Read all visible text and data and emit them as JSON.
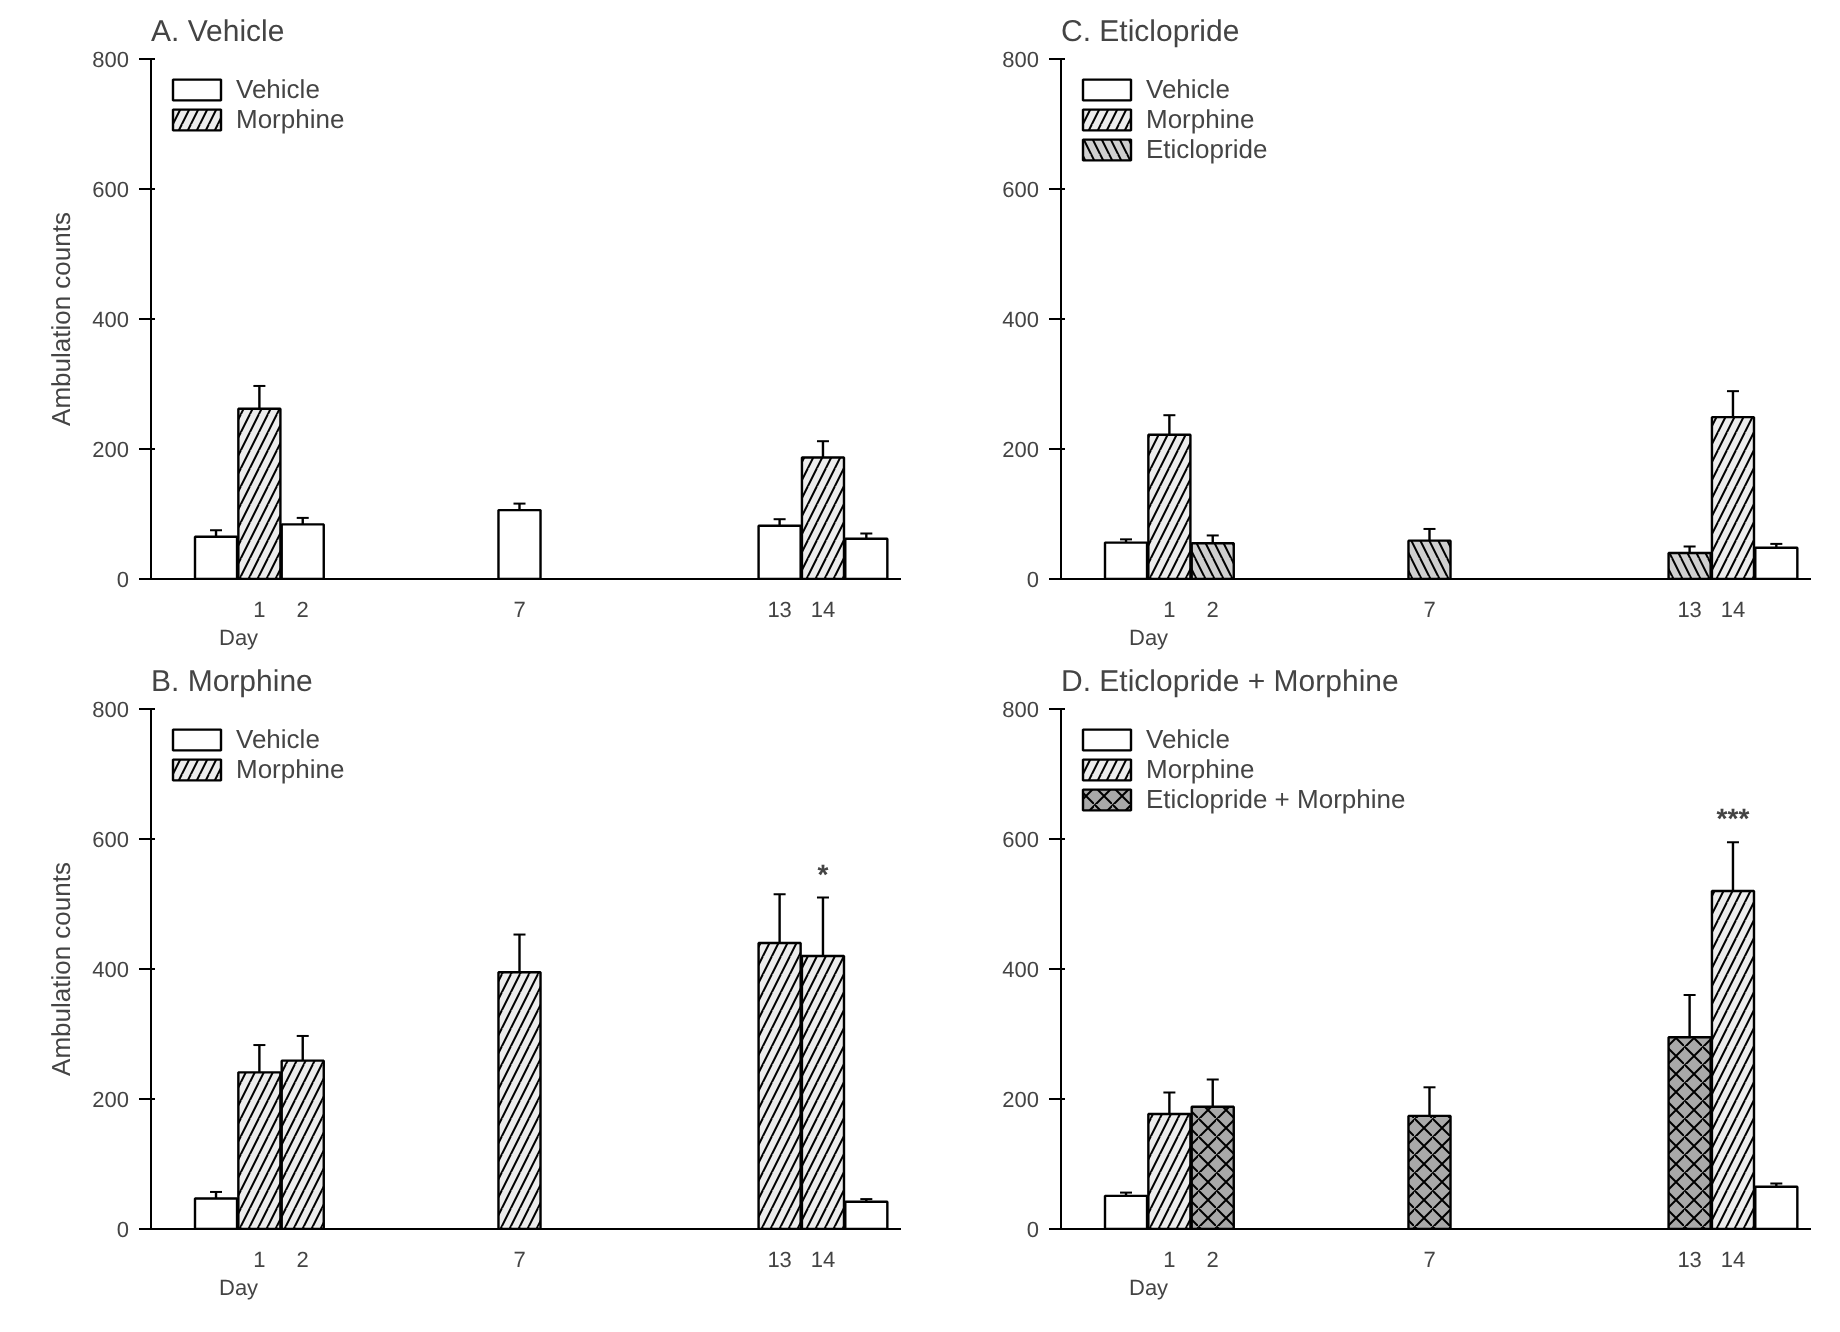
{
  "chart_data": [
    {
      "type": "bar",
      "title": "A. Vehicle",
      "xlabel": "Day",
      "ylabel": "Ambulation counts",
      "ylim": [
        0,
        800
      ],
      "yticks": [
        0,
        200,
        400,
        600,
        800
      ],
      "xlim": [
        -1.5,
        15.8
      ],
      "xticks": [
        1,
        2,
        7,
        13,
        14
      ],
      "legend": "top left",
      "grid": false,
      "series": [
        {
          "name": "Vehicle",
          "color": "#ffffff",
          "x": [
            0,
            2,
            7,
            13,
            15
          ],
          "values": [
            65,
            84,
            106,
            82,
            62
          ],
          "errors": [
            10,
            10,
            10,
            10,
            8
          ]
        },
        {
          "name": "Morphine",
          "color": "#ececec",
          "x": [
            1,
            14
          ],
          "values": [
            262,
            187
          ],
          "errors": [
            35,
            25
          ]
        }
      ]
    },
    {
      "type": "bar",
      "title": "C. Eticlopride",
      "xlabel": "Day",
      "ylim": [
        0,
        800
      ],
      "yticks": [
        0,
        200,
        400,
        600,
        800
      ],
      "xlim": [
        -1.5,
        15.8
      ],
      "xticks": [
        1,
        2,
        7,
        13,
        14
      ],
      "legend": "top left",
      "grid": false,
      "series": [
        {
          "name": "Vehicle",
          "color": "#ffffff",
          "x": [
            0,
            15
          ],
          "values": [
            56,
            48
          ],
          "errors": [
            5,
            6
          ]
        },
        {
          "name": "Morphine",
          "color": "#ececec",
          "x": [
            1,
            14
          ],
          "values": [
            222,
            249
          ],
          "errors": [
            30,
            40
          ]
        },
        {
          "name": "Eticlopride",
          "color": "#cfcfcf",
          "x": [
            2,
            7,
            13
          ],
          "values": [
            55,
            59,
            40
          ],
          "errors": [
            12,
            18,
            10
          ]
        }
      ]
    },
    {
      "type": "bar",
      "title": "B. Morphine",
      "xlabel": "Day",
      "ylabel": "Ambulation counts",
      "ylim": [
        0,
        800
      ],
      "yticks": [
        0,
        200,
        400,
        600,
        800
      ],
      "xlim": [
        -1.5,
        15.8
      ],
      "xticks": [
        1,
        2,
        7,
        13,
        14
      ],
      "legend": "top left",
      "grid": false,
      "annotations": [
        {
          "text": "*",
          "x": 14,
          "y": 510
        }
      ],
      "series": [
        {
          "name": "Vehicle",
          "color": "#ffffff",
          "x": [
            0,
            15
          ],
          "values": [
            47,
            42
          ],
          "errors": [
            10,
            4
          ]
        },
        {
          "name": "Morphine",
          "color": "#ececec",
          "x": [
            1,
            2,
            7,
            13,
            14
          ],
          "values": [
            241,
            259,
            395,
            440,
            420
          ],
          "errors": [
            42,
            38,
            58,
            75,
            90
          ]
        }
      ]
    },
    {
      "type": "bar",
      "title": "D. Eticlopride + Morphine",
      "xlabel": "Day",
      "ylim": [
        0,
        800
      ],
      "yticks": [
        0,
        200,
        400,
        600,
        800
      ],
      "xlim": [
        -1.5,
        15.8
      ],
      "xticks": [
        1,
        2,
        7,
        13,
        14
      ],
      "legend": "top left",
      "grid": false,
      "annotations": [
        {
          "text": "***",
          "x": 14,
          "y": 595
        }
      ],
      "series": [
        {
          "name": "Vehicle",
          "color": "#ffffff",
          "x": [
            0,
            15
          ],
          "values": [
            51,
            65
          ],
          "errors": [
            5,
            5
          ]
        },
        {
          "name": "Morphine",
          "color": "#ececec",
          "x": [
            1,
            14
          ],
          "values": [
            177,
            520
          ],
          "errors": [
            33,
            75
          ]
        },
        {
          "name": "Eticlopride + Morphine",
          "color": "#a9a9a9",
          "x": [
            2,
            7,
            13
          ],
          "values": [
            188,
            174,
            295
          ],
          "errors": [
            42,
            44,
            65
          ]
        }
      ]
    }
  ]
}
